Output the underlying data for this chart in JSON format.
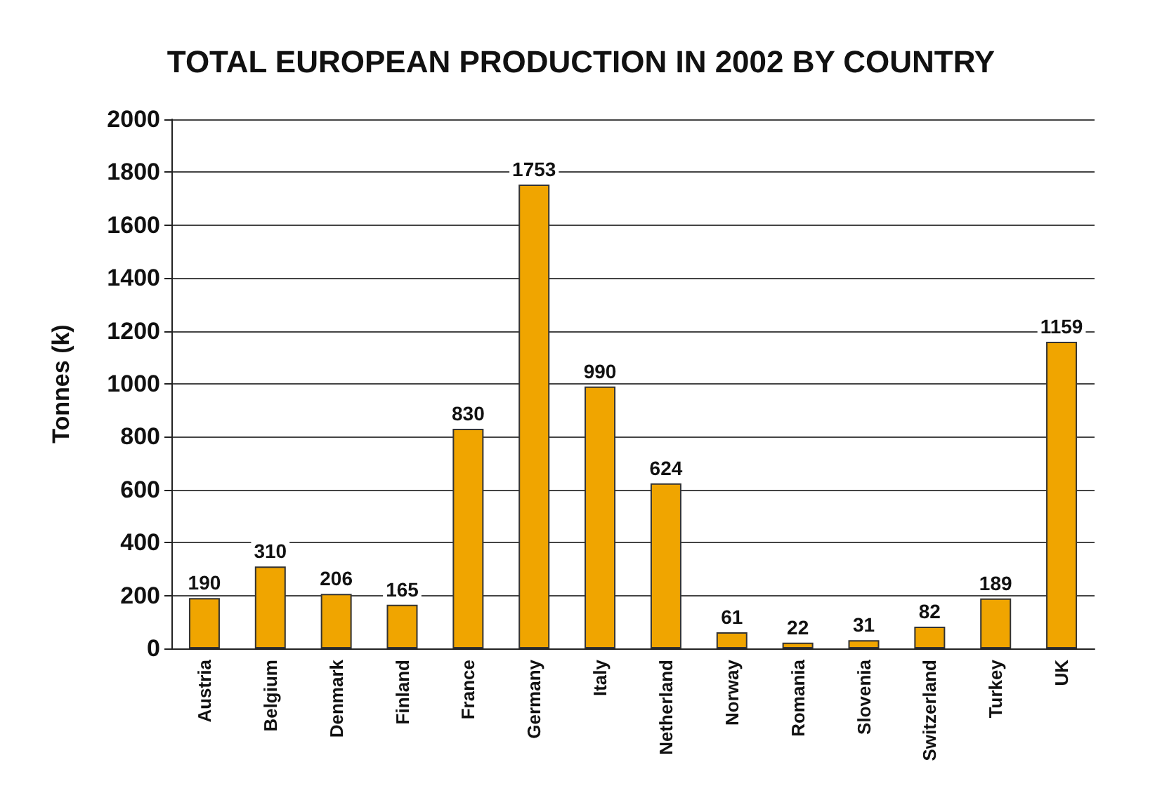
{
  "chart_data": {
    "type": "bar",
    "title": "TOTAL EUROPEAN PRODUCTION IN 2002 BY COUNTRY",
    "ylabel": "Tonnes (k)",
    "categories": [
      "Austria",
      "Belgium",
      "Denmark",
      "Finland",
      "France",
      "Germany",
      "Italy",
      "Netherland",
      "Norway",
      "Romania",
      "Slovenia",
      "Switzerland",
      "Turkey",
      "UK"
    ],
    "values": [
      190,
      310,
      206,
      165,
      830,
      1753,
      990,
      624,
      61,
      22,
      31,
      82,
      189,
      1159
    ],
    "color": "#f0a500",
    "ylim": [
      0,
      2000
    ],
    "yticks": [
      0,
      200,
      400,
      600,
      800,
      1000,
      1200,
      1400,
      1600,
      1800,
      2000
    ],
    "grid": "y",
    "data_labels": true
  }
}
